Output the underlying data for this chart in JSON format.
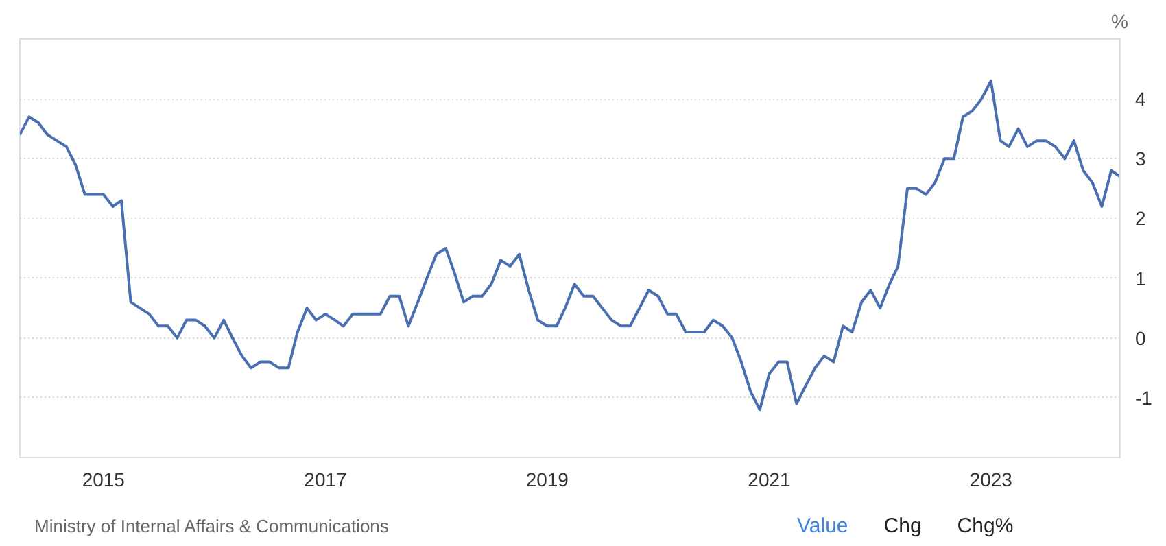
{
  "chart_data": {
    "type": "line",
    "ylabel": "%",
    "x": [
      "2014-04",
      "2014-05",
      "2014-06",
      "2014-07",
      "2014-08",
      "2014-09",
      "2014-10",
      "2014-11",
      "2014-12",
      "2015-01",
      "2015-02",
      "2015-03",
      "2015-04",
      "2015-05",
      "2015-06",
      "2015-07",
      "2015-08",
      "2015-09",
      "2015-10",
      "2015-11",
      "2015-12",
      "2016-01",
      "2016-02",
      "2016-03",
      "2016-04",
      "2016-05",
      "2016-06",
      "2016-07",
      "2016-08",
      "2016-09",
      "2016-10",
      "2016-11",
      "2016-12",
      "2017-01",
      "2017-02",
      "2017-03",
      "2017-04",
      "2017-05",
      "2017-06",
      "2017-07",
      "2017-08",
      "2017-09",
      "2017-10",
      "2017-11",
      "2017-12",
      "2018-01",
      "2018-02",
      "2018-03",
      "2018-04",
      "2018-05",
      "2018-06",
      "2018-07",
      "2018-08",
      "2018-09",
      "2018-10",
      "2018-11",
      "2018-12",
      "2019-01",
      "2019-02",
      "2019-03",
      "2019-04",
      "2019-05",
      "2019-06",
      "2019-07",
      "2019-08",
      "2019-09",
      "2019-10",
      "2019-11",
      "2019-12",
      "2020-01",
      "2020-02",
      "2020-03",
      "2020-04",
      "2020-05",
      "2020-06",
      "2020-07",
      "2020-08",
      "2020-09",
      "2020-10",
      "2020-11",
      "2020-12",
      "2021-01",
      "2021-02",
      "2021-03",
      "2021-04",
      "2021-05",
      "2021-06",
      "2021-07",
      "2021-08",
      "2021-09",
      "2021-10",
      "2021-11",
      "2021-12",
      "2022-01",
      "2022-02",
      "2022-03",
      "2022-04",
      "2022-05",
      "2022-06",
      "2022-07",
      "2022-08",
      "2022-09",
      "2022-10",
      "2022-11",
      "2022-12",
      "2023-01",
      "2023-02",
      "2023-03",
      "2023-04",
      "2023-05",
      "2023-06",
      "2023-07",
      "2023-08",
      "2023-09",
      "2023-10",
      "2023-11",
      "2023-12",
      "2024-01",
      "2024-02",
      "2024-03"
    ],
    "series": [
      {
        "color": "#4a6fb0",
        "values": [
          3.4,
          3.7,
          3.6,
          3.4,
          3.3,
          3.2,
          2.9,
          2.4,
          2.4,
          2.4,
          2.2,
          2.3,
          0.6,
          0.5,
          0.4,
          0.2,
          0.2,
          0.0,
          0.3,
          0.3,
          0.2,
          0.0,
          0.3,
          0.0,
          -0.3,
          -0.5,
          -0.4,
          -0.4,
          -0.5,
          -0.5,
          0.1,
          0.5,
          0.3,
          0.4,
          0.3,
          0.2,
          0.4,
          0.4,
          0.4,
          0.4,
          0.7,
          0.7,
          0.2,
          0.6,
          1.0,
          1.4,
          1.5,
          1.1,
          0.6,
          0.7,
          0.7,
          0.9,
          1.3,
          1.2,
          1.4,
          0.8,
          0.3,
          0.2,
          0.2,
          0.5,
          0.9,
          0.7,
          0.7,
          0.5,
          0.3,
          0.2,
          0.2,
          0.5,
          0.8,
          0.7,
          0.4,
          0.4,
          0.1,
          0.1,
          0.1,
          0.3,
          0.2,
          0.0,
          -0.4,
          -0.9,
          -1.2,
          -0.6,
          -0.4,
          -0.4,
          -1.1,
          -0.8,
          -0.5,
          -0.3,
          -0.4,
          0.2,
          0.1,
          0.6,
          0.8,
          0.5,
          0.9,
          1.2,
          2.5,
          2.5,
          2.4,
          2.6,
          3.0,
          3.0,
          3.7,
          3.8,
          4.0,
          4.3,
          3.3,
          3.2,
          3.5,
          3.2,
          3.3,
          3.3,
          3.2,
          3.0,
          3.3,
          2.8,
          2.6,
          2.2,
          2.8,
          2.7
        ]
      }
    ],
    "xlim": [
      "2014-04",
      "2024-03"
    ],
    "xticks": [
      {
        "value": "2015-01",
        "label": "2015"
      },
      {
        "value": "2017-01",
        "label": "2017"
      },
      {
        "value": "2019-01",
        "label": "2019"
      },
      {
        "value": "2021-01",
        "label": "2021"
      },
      {
        "value": "2023-01",
        "label": "2023"
      }
    ],
    "ylim": [
      -2,
      5
    ],
    "yticks": [
      -1,
      0,
      1,
      2,
      3,
      4,
      {
        "value": 5,
        "label": null
      }
    ],
    "grid": true,
    "marker": "none",
    "line_style": "solid",
    "annotations": [
      "Ministry of Internal Affairs & Communications",
      "Value",
      "Chg",
      "Chg%"
    ]
  }
}
